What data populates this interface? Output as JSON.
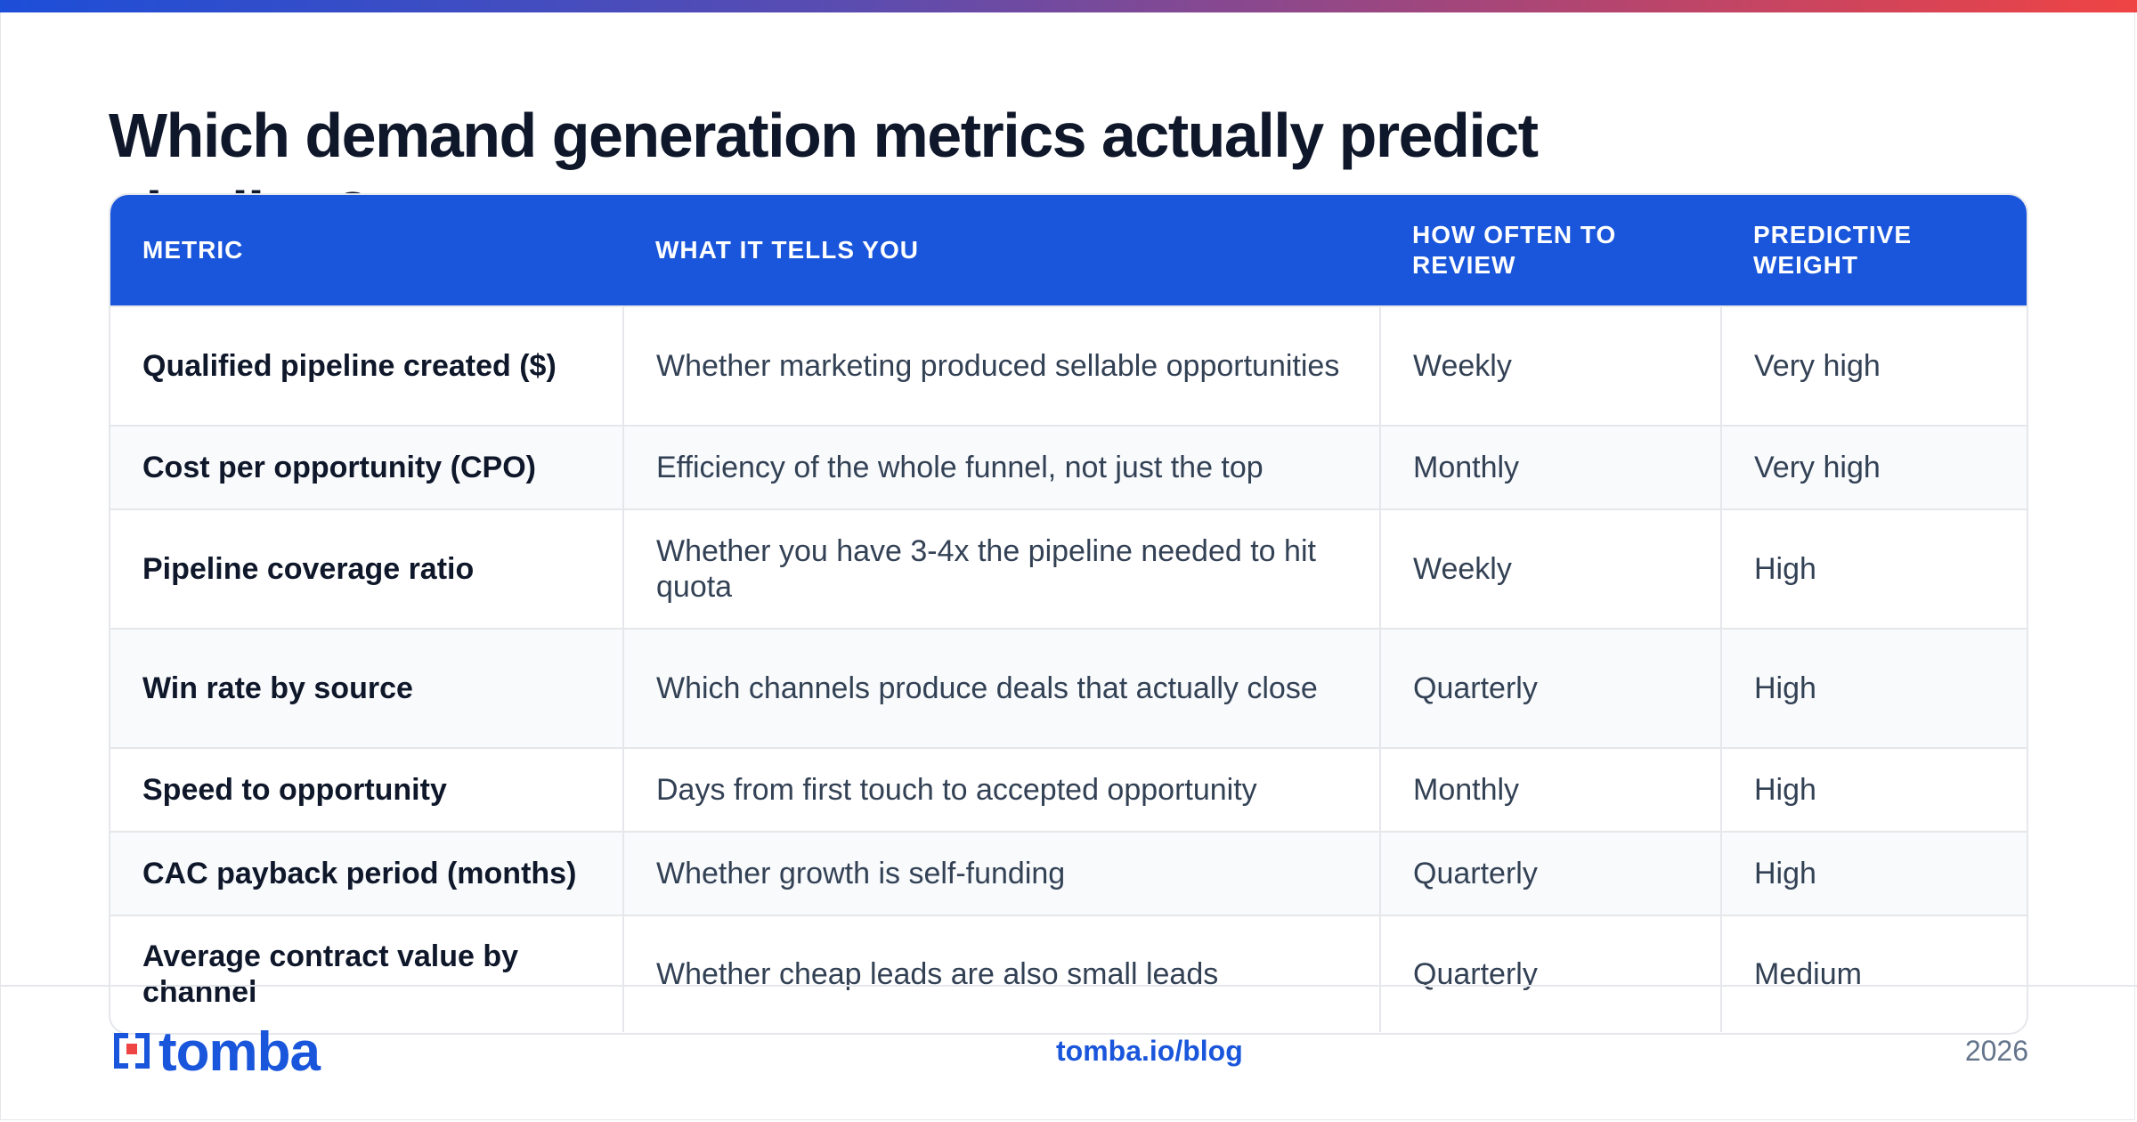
{
  "title": "Which demand generation metrics actually predict pipeline?",
  "table": {
    "headers": [
      "METRIC",
      "WHAT IT TELLS YOU",
      "HOW OFTEN TO REVIEW",
      "PREDICTIVE WEIGHT"
    ],
    "rows": [
      {
        "metric": "Qualified pipeline created ($)",
        "tells": "Whether marketing produced sellable opportunities",
        "review": "Weekly",
        "weight": "Very high"
      },
      {
        "metric": "Cost per opportunity (CPO)",
        "tells": "Efficiency of the whole funnel, not just the top",
        "review": "Monthly",
        "weight": "Very high"
      },
      {
        "metric": "Pipeline coverage ratio",
        "tells": "Whether you have 3-4x the pipeline needed to hit quota",
        "review": "Weekly",
        "weight": "High"
      },
      {
        "metric": "Win rate by source",
        "tells": "Which channels produce deals that actually close",
        "review": "Quarterly",
        "weight": "High"
      },
      {
        "metric": "Speed to opportunity",
        "tells": "Days from first touch to accepted opportunity",
        "review": "Monthly",
        "weight": "High"
      },
      {
        "metric": "CAC payback period (months)",
        "tells": "Whether growth is self-funding",
        "review": "Quarterly",
        "weight": "High"
      },
      {
        "metric": "Average contract value by channel",
        "tells": "Whether cheap leads are also small leads",
        "review": "Quarterly",
        "weight": "Medium"
      }
    ]
  },
  "footer": {
    "brand": "tomba",
    "link": "tomba.io/blog",
    "year": "2026"
  },
  "colors": {
    "accent": "#1a56db",
    "text": "#0f172a",
    "muted": "#64748b",
    "border": "#e5e7eb"
  },
  "icons": [
    "tomba-logo-icon"
  ]
}
